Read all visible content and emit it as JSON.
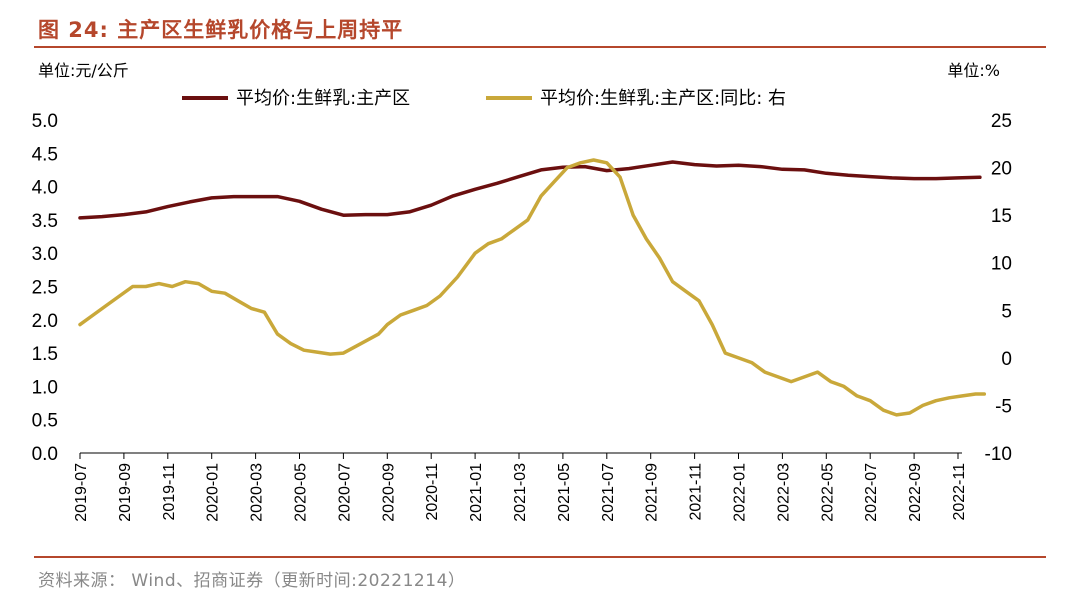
{
  "figure_title": "图 24:  主产区生鲜乳价格与上周持平",
  "source_note": "资料来源：  Wind、招商证券（更新时间:20221214）",
  "colors": {
    "title": "#b5472c",
    "series_price": "#6b0f0f",
    "series_yoy": "#c9a83a",
    "negative_tick": "#e8201c"
  },
  "chart_data": {
    "type": "line",
    "left_unit": "单位:元/公斤",
    "right_unit": "单位:%",
    "x_labels": [
      "2019-07",
      "2019-09",
      "2019-11",
      "2020-01",
      "2020-03",
      "2020-05",
      "2020-07",
      "2020-09",
      "2020-11",
      "2021-01",
      "2021-03",
      "2021-05",
      "2021-07",
      "2021-09",
      "2021-11",
      "2022-01",
      "2022-03",
      "2022-05",
      "2022-07",
      "2022-09",
      "2022-11"
    ],
    "left_ticks": [
      "5.0",
      "4.5",
      "4.0",
      "3.5",
      "3.0",
      "2.5",
      "2.0",
      "1.5",
      "1.0",
      "0.5",
      "0.0"
    ],
    "right_ticks": [
      "25",
      "20",
      "15",
      "10",
      "5",
      "0",
      "-5",
      "-10"
    ],
    "ylim_left": [
      0,
      5
    ],
    "ylim_right": [
      -10,
      25
    ],
    "series": [
      {
        "name": "平均价:生鲜乳:主产区",
        "axis": "left",
        "t": [
          0,
          0.5,
          1,
          1.5,
          2,
          2.5,
          3,
          3.5,
          4,
          4.5,
          5,
          5.5,
          6,
          6.5,
          7,
          7.5,
          8,
          8.5,
          9,
          9.5,
          10,
          10.5,
          11,
          11.5,
          12,
          12.5,
          13,
          13.5,
          14,
          14.5,
          15,
          15.5,
          16,
          16.5,
          17,
          17.5,
          18,
          18.5,
          19,
          19.5,
          20,
          20.5
        ],
        "values": [
          3.53,
          3.55,
          3.58,
          3.62,
          3.7,
          3.77,
          3.83,
          3.85,
          3.85,
          3.85,
          3.78,
          3.66,
          3.57,
          3.58,
          3.58,
          3.62,
          3.72,
          3.86,
          3.96,
          4.05,
          4.15,
          4.25,
          4.29,
          4.3,
          4.24,
          4.27,
          4.32,
          4.37,
          4.33,
          4.31,
          4.32,
          4.3,
          4.26,
          4.25,
          4.2,
          4.17,
          4.15,
          4.13,
          4.12,
          4.12,
          4.13,
          4.14
        ]
      },
      {
        "name": "平均价:生鲜乳:主产区:同比:  右",
        "axis": "right",
        "t": [
          0,
          0.3,
          0.6,
          0.9,
          1.2,
          1.5,
          1.8,
          2.1,
          2.4,
          2.7,
          3.0,
          3.3,
          3.6,
          3.9,
          4.2,
          4.5,
          4.8,
          5.1,
          5.4,
          5.7,
          6.0,
          6.4,
          6.8,
          7.0,
          7.3,
          7.6,
          7.9,
          8.2,
          8.6,
          9.0,
          9.3,
          9.6,
          9.9,
          10.2,
          10.5,
          10.8,
          11.1,
          11.4,
          11.7,
          12.0,
          12.3,
          12.6,
          12.9,
          13.2,
          13.5,
          13.8,
          14.1,
          14.4,
          14.7,
          15.0,
          15.3,
          15.6,
          15.9,
          16.2,
          16.5,
          16.8,
          17.1,
          17.4,
          17.7,
          18.0,
          18.3,
          18.6,
          18.9,
          19.2,
          19.5,
          19.8,
          20.1,
          20.4,
          20.6
        ],
        "values": [
          3.5,
          4.5,
          5.5,
          6.5,
          7.5,
          7.5,
          7.8,
          7.5,
          8.0,
          7.8,
          7.0,
          6.8,
          6.0,
          5.2,
          4.8,
          2.5,
          1.5,
          0.8,
          0.6,
          0.4,
          0.5,
          1.5,
          2.5,
          3.5,
          4.5,
          5.0,
          5.5,
          6.5,
          8.5,
          11.0,
          12.0,
          12.5,
          13.5,
          14.5,
          17.0,
          18.5,
          20.0,
          20.5,
          20.8,
          20.5,
          19.0,
          15.0,
          12.5,
          10.5,
          8.0,
          7.0,
          6.0,
          3.5,
          0.5,
          0.0,
          -0.5,
          -1.5,
          -2.0,
          -2.5,
          -2.0,
          -1.5,
          -2.5,
          -3.0,
          -4.0,
          -4.5,
          -5.5,
          -6.0,
          -5.8,
          -5.0,
          -4.5,
          -4.2,
          -4.0,
          -3.8,
          -3.8
        ]
      }
    ]
  }
}
